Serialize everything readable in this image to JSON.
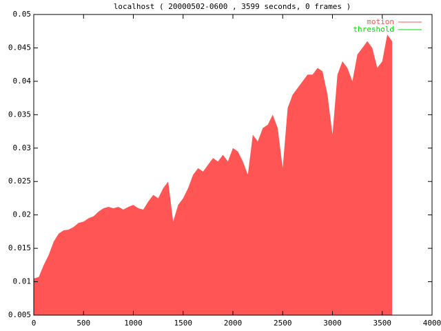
{
  "chart_data": {
    "type": "area",
    "title": "localhost ( 20000502-0600 , 3599 seconds, 0 frames )",
    "xlim": [
      0,
      4000
    ],
    "xticks": [
      0,
      500,
      1000,
      1500,
      2000,
      2500,
      3000,
      3500,
      4000
    ],
    "ylim": [
      0.005,
      0.05
    ],
    "yticks": [
      0.005,
      0.01,
      0.015,
      0.02,
      0.025,
      0.03,
      0.035,
      0.04,
      0.045,
      0.05
    ],
    "legend": "top-right",
    "series": [
      {
        "name": "motion",
        "color": "#ff5555",
        "x": [
          0,
          50,
          100,
          150,
          200,
          250,
          300,
          350,
          400,
          450,
          500,
          550,
          600,
          650,
          700,
          750,
          800,
          850,
          900,
          950,
          1000,
          1050,
          1100,
          1150,
          1200,
          1250,
          1300,
          1350,
          1400,
          1450,
          1500,
          1550,
          1600,
          1650,
          1700,
          1750,
          1800,
          1850,
          1900,
          1950,
          2000,
          2050,
          2100,
          2150,
          2200,
          2250,
          2300,
          2350,
          2400,
          2450,
          2500,
          2550,
          2600,
          2650,
          2700,
          2750,
          2800,
          2850,
          2900,
          2950,
          3000,
          3050,
          3100,
          3150,
          3200,
          3250,
          3300,
          3350,
          3400,
          3450,
          3500,
          3550,
          3599
        ],
        "values": [
          0.0105,
          0.0107,
          0.0125,
          0.014,
          0.016,
          0.0172,
          0.0177,
          0.0178,
          0.0182,
          0.0188,
          0.019,
          0.0195,
          0.0198,
          0.0205,
          0.021,
          0.0212,
          0.021,
          0.0212,
          0.0208,
          0.0212,
          0.0215,
          0.021,
          0.0208,
          0.022,
          0.023,
          0.0225,
          0.024,
          0.025,
          0.019,
          0.0215,
          0.0225,
          0.024,
          0.026,
          0.027,
          0.0265,
          0.0275,
          0.0285,
          0.028,
          0.029,
          0.028,
          0.03,
          0.0295,
          0.028,
          0.026,
          0.032,
          0.031,
          0.033,
          0.0335,
          0.035,
          0.033,
          0.027,
          0.036,
          0.038,
          0.039,
          0.04,
          0.041,
          0.041,
          0.042,
          0.0415,
          0.038,
          0.032,
          0.041,
          0.043,
          0.042,
          0.04,
          0.044,
          0.045,
          0.046,
          0.045,
          0.042,
          0.043,
          0.047,
          0.046
        ]
      },
      {
        "name": "threshold",
        "color": "#00dd00",
        "type": "line",
        "x": [
          0,
          3599
        ],
        "values": [
          0.05,
          0.05
        ]
      }
    ]
  }
}
